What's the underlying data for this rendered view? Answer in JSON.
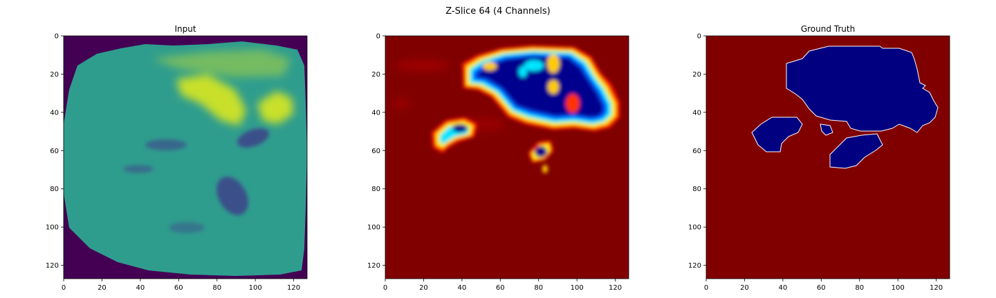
{
  "figure": {
    "suptitle": "Z-Slice 64 (4 Channels)"
  },
  "chart_data": [
    {
      "type": "heatmap",
      "title": "Input",
      "xlabel": "",
      "ylabel": "",
      "xlim": [
        0,
        127
      ],
      "ylim": [
        127,
        0
      ],
      "xticks": [
        0,
        20,
        40,
        60,
        80,
        100,
        120
      ],
      "yticks": [
        0,
        20,
        40,
        60,
        80,
        100,
        120
      ],
      "colormap": "viridis",
      "background_color": "#440154",
      "tissue_color": "#2f9d8e",
      "bright_color": "#c8e02a",
      "dark_color": "#3b4f8a"
    },
    {
      "type": "heatmap",
      "title": "",
      "xlabel": "",
      "ylabel": "",
      "xlim": [
        0,
        127
      ],
      "ylim": [
        127,
        0
      ],
      "xticks": [
        0,
        20,
        40,
        60,
        80,
        100,
        120
      ],
      "yticks": [
        0,
        20,
        40,
        60,
        80,
        100,
        120
      ],
      "colormap": "jet",
      "background_color": "#800000",
      "region_color": "#00008f"
    },
    {
      "type": "heatmap",
      "title": "Ground Truth",
      "xlabel": "",
      "ylabel": "",
      "xlim": [
        0,
        127
      ],
      "ylim": [
        127,
        0
      ],
      "xticks": [
        0,
        20,
        40,
        60,
        80,
        100,
        120
      ],
      "yticks": [
        0,
        20,
        40,
        60,
        80,
        100,
        120
      ],
      "colormap": "jet",
      "background_color": "#800000",
      "region_color": "#000080"
    }
  ]
}
